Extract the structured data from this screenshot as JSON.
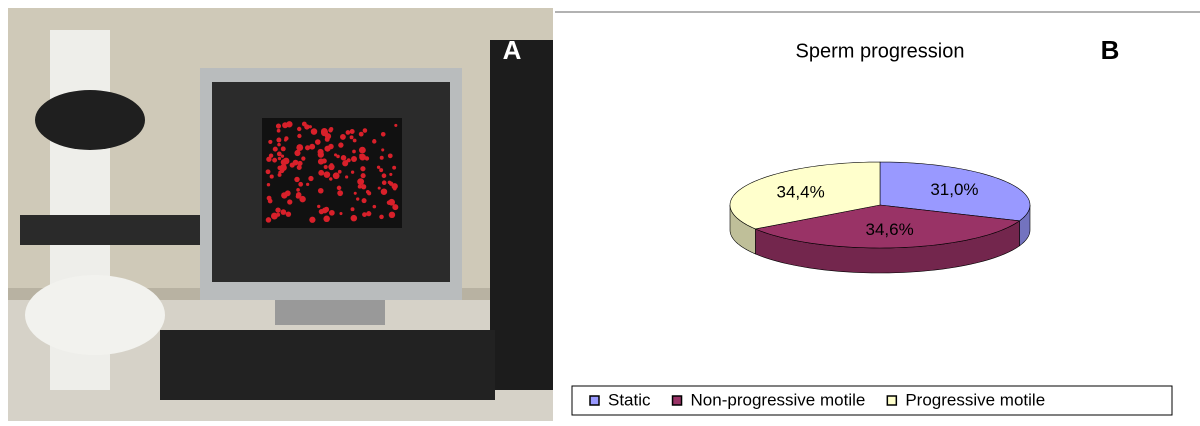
{
  "panel_labels": [
    "A",
    "B"
  ],
  "chart_data": {
    "type": "pie3d",
    "title": "Sperm progression",
    "categories": [
      "Static",
      "Non-progressive motile",
      "Progressive motile"
    ],
    "values": [
      31.0,
      34.6,
      34.4
    ],
    "value_labels": [
      "31,0%",
      "34,6%",
      "34,4%"
    ],
    "colors": [
      "#9999ff",
      "#993366",
      "#ffffcc"
    ],
    "legend": "bottom"
  }
}
